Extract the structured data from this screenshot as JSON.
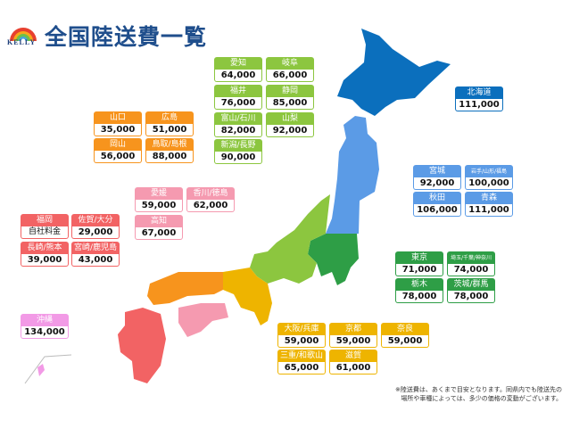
{
  "header": {
    "title": "全国陸送費一覧",
    "logo_text": "KELLY"
  },
  "colors": {
    "chubu": "#8cc63f",
    "chugoku": "#f7941d",
    "shikoku": "#f59ab0",
    "kyushu": "#f26364",
    "okinawa": "#f29ae6",
    "hokkaido": "#0b6fbd",
    "tohoku": "#5b9be6",
    "kanto": "#2e9e46",
    "kinki": "#eeb400"
  },
  "cards": [
    {
      "region": "chubu",
      "label": "愛知",
      "price": "64,000"
    },
    {
      "region": "chubu",
      "label": "岐阜",
      "price": "66,000"
    },
    {
      "region": "chubu",
      "label": "福井",
      "price": "76,000"
    },
    {
      "region": "chubu",
      "label": "静岡",
      "price": "85,000"
    },
    {
      "region": "chubu",
      "label": "富山/石川",
      "price": "82,000"
    },
    {
      "region": "chubu",
      "label": "山梨",
      "price": "92,000"
    },
    {
      "region": "chubu",
      "label": "新潟/長野",
      "price": "90,000"
    },
    {
      "region": "chugoku",
      "label": "山口",
      "price": "35,000"
    },
    {
      "region": "chugoku",
      "label": "広島",
      "price": "51,000"
    },
    {
      "region": "chugoku",
      "label": "岡山",
      "price": "56,000"
    },
    {
      "region": "chugoku",
      "label": "鳥取/島根",
      "price": "88,000"
    },
    {
      "region": "shikoku",
      "label": "愛媛",
      "price": "59,000"
    },
    {
      "region": "shikoku",
      "label": "香川/徳島",
      "price": "62,000"
    },
    {
      "region": "shikoku",
      "label": "高知",
      "price": "67,000"
    },
    {
      "region": "kyushu",
      "label": "福岡",
      "price": "自社料金"
    },
    {
      "region": "kyushu",
      "label": "佐賀/大分",
      "price": "29,000"
    },
    {
      "region": "kyushu",
      "label": "長崎/熊本",
      "price": "39,000"
    },
    {
      "region": "kyushu",
      "label": "宮崎/鹿児島",
      "price": "43,000"
    },
    {
      "region": "okinawa",
      "label": "沖縄",
      "price": "134,000"
    },
    {
      "region": "hokkaido",
      "label": "北海道",
      "price": "111,000"
    },
    {
      "region": "tohoku",
      "label": "宮城",
      "price": "92,000"
    },
    {
      "region": "tohoku",
      "label": "岩手/山形/福島",
      "price": "100,000"
    },
    {
      "region": "tohoku",
      "label": "秋田",
      "price": "106,000"
    },
    {
      "region": "tohoku",
      "label": "青森",
      "price": "111,000"
    },
    {
      "region": "kanto",
      "label": "東京",
      "price": "71,000"
    },
    {
      "region": "kanto",
      "label": "埼玉/千葉/神奈川",
      "price": "74,000"
    },
    {
      "region": "kanto",
      "label": "栃木",
      "price": "78,000"
    },
    {
      "region": "kanto",
      "label": "茨城/群馬",
      "price": "78,000"
    },
    {
      "region": "kinki",
      "label": "大阪/兵庫",
      "price": "59,000"
    },
    {
      "region": "kinki",
      "label": "京都",
      "price": "59,000"
    },
    {
      "region": "kinki",
      "label": "奈良",
      "price": "59,000"
    },
    {
      "region": "kinki",
      "label": "三重/和歌山",
      "price": "65,000"
    },
    {
      "region": "kinki",
      "label": "滋賀",
      "price": "61,000"
    }
  ],
  "note": {
    "line1": "※陸送費は、あくまで目安となります。同県内でも陸送先の",
    "line2": "場所や車種によっては、多少の価格の変動がございます。"
  }
}
